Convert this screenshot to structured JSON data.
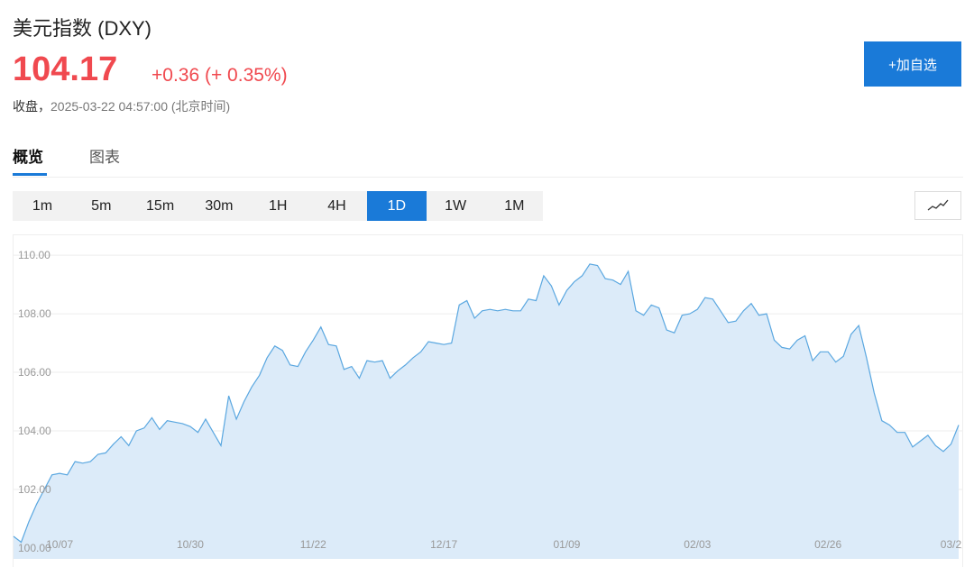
{
  "header": {
    "title": "美元指数 (DXY)",
    "price": "104.17",
    "change": "+0.36 (+ 0.35%)",
    "status_label": "收盘，",
    "status_time": "2025-03-22 04:57:00",
    "status_zone": "(北京时间)",
    "add_button": "+加自选"
  },
  "tabs": [
    "概览",
    "图表"
  ],
  "intervals": [
    "1m",
    "5m",
    "15m",
    "30m",
    "1H",
    "4H",
    "1D",
    "1W",
    "1M"
  ],
  "chart_data": {
    "type": "area",
    "color": "#5aa7e0",
    "fill": "#dcebf9",
    "grid": true,
    "ylim": [
      99.63,
      110.65
    ],
    "yticks": [
      {
        "value": 100,
        "label": "100.00"
      },
      {
        "value": 102,
        "label": "102.00"
      },
      {
        "value": 104,
        "label": "104.00"
      },
      {
        "value": 106,
        "label": "106.00"
      },
      {
        "value": 108,
        "label": "108.00"
      },
      {
        "value": 110,
        "label": "110.00"
      }
    ],
    "categories": [
      null,
      null,
      null,
      null,
      null,
      null,
      "10/07",
      null,
      null,
      null,
      null,
      null,
      null,
      null,
      null,
      null,
      null,
      null,
      null,
      null,
      null,
      null,
      null,
      "10/30",
      null,
      null,
      null,
      null,
      null,
      null,
      null,
      null,
      null,
      null,
      null,
      null,
      null,
      null,
      null,
      "11/22",
      null,
      null,
      null,
      null,
      null,
      null,
      null,
      null,
      null,
      null,
      null,
      null,
      null,
      null,
      null,
      null,
      "12/17",
      null,
      null,
      null,
      null,
      null,
      null,
      null,
      null,
      null,
      null,
      null,
      null,
      null,
      null,
      null,
      "01/09",
      null,
      null,
      null,
      null,
      null,
      null,
      null,
      null,
      null,
      null,
      null,
      null,
      null,
      null,
      null,
      null,
      "02/03",
      null,
      null,
      null,
      null,
      null,
      null,
      null,
      null,
      null,
      null,
      null,
      null,
      null,
      null,
      null,
      null,
      "02/26",
      null,
      null,
      null,
      null,
      null,
      null,
      null,
      null,
      null,
      null,
      null,
      null,
      null,
      null,
      null,
      "03/2",
      null
    ],
    "values": [
      100.4,
      100.2,
      100.9,
      101.5,
      102.0,
      102.5,
      102.55,
      102.5,
      102.95,
      102.9,
      102.95,
      103.2,
      103.25,
      103.55,
      103.8,
      103.5,
      104.0,
      104.1,
      104.45,
      104.05,
      104.35,
      104.3,
      104.25,
      104.15,
      103.95,
      104.4,
      103.95,
      103.5,
      105.2,
      104.4,
      105.0,
      105.5,
      105.9,
      106.5,
      106.9,
      106.75,
      106.25,
      106.2,
      106.7,
      107.1,
      107.55,
      106.95,
      106.9,
      106.1,
      106.2,
      105.8,
      106.4,
      106.35,
      106.4,
      105.8,
      106.05,
      106.25,
      106.5,
      106.7,
      107.05,
      107.0,
      106.95,
      107.0,
      108.3,
      108.45,
      107.85,
      108.1,
      108.15,
      108.1,
      108.15,
      108.1,
      108.1,
      108.5,
      108.45,
      109.3,
      108.95,
      108.3,
      108.8,
      109.1,
      109.3,
      109.7,
      109.65,
      109.2,
      109.15,
      109.0,
      109.45,
      108.1,
      107.95,
      108.3,
      108.2,
      107.45,
      107.35,
      107.95,
      108.0,
      108.15,
      108.55,
      108.5,
      108.1,
      107.7,
      107.75,
      108.1,
      108.35,
      107.95,
      108.0,
      107.1,
      106.85,
      106.8,
      107.1,
      107.25,
      106.4,
      106.7,
      106.7,
      106.35,
      106.55,
      107.3,
      107.6,
      106.5,
      105.3,
      104.35,
      104.2,
      103.95,
      103.95,
      103.45,
      103.65,
      103.85,
      103.5,
      103.3,
      103.55,
      104.2
    ]
  }
}
